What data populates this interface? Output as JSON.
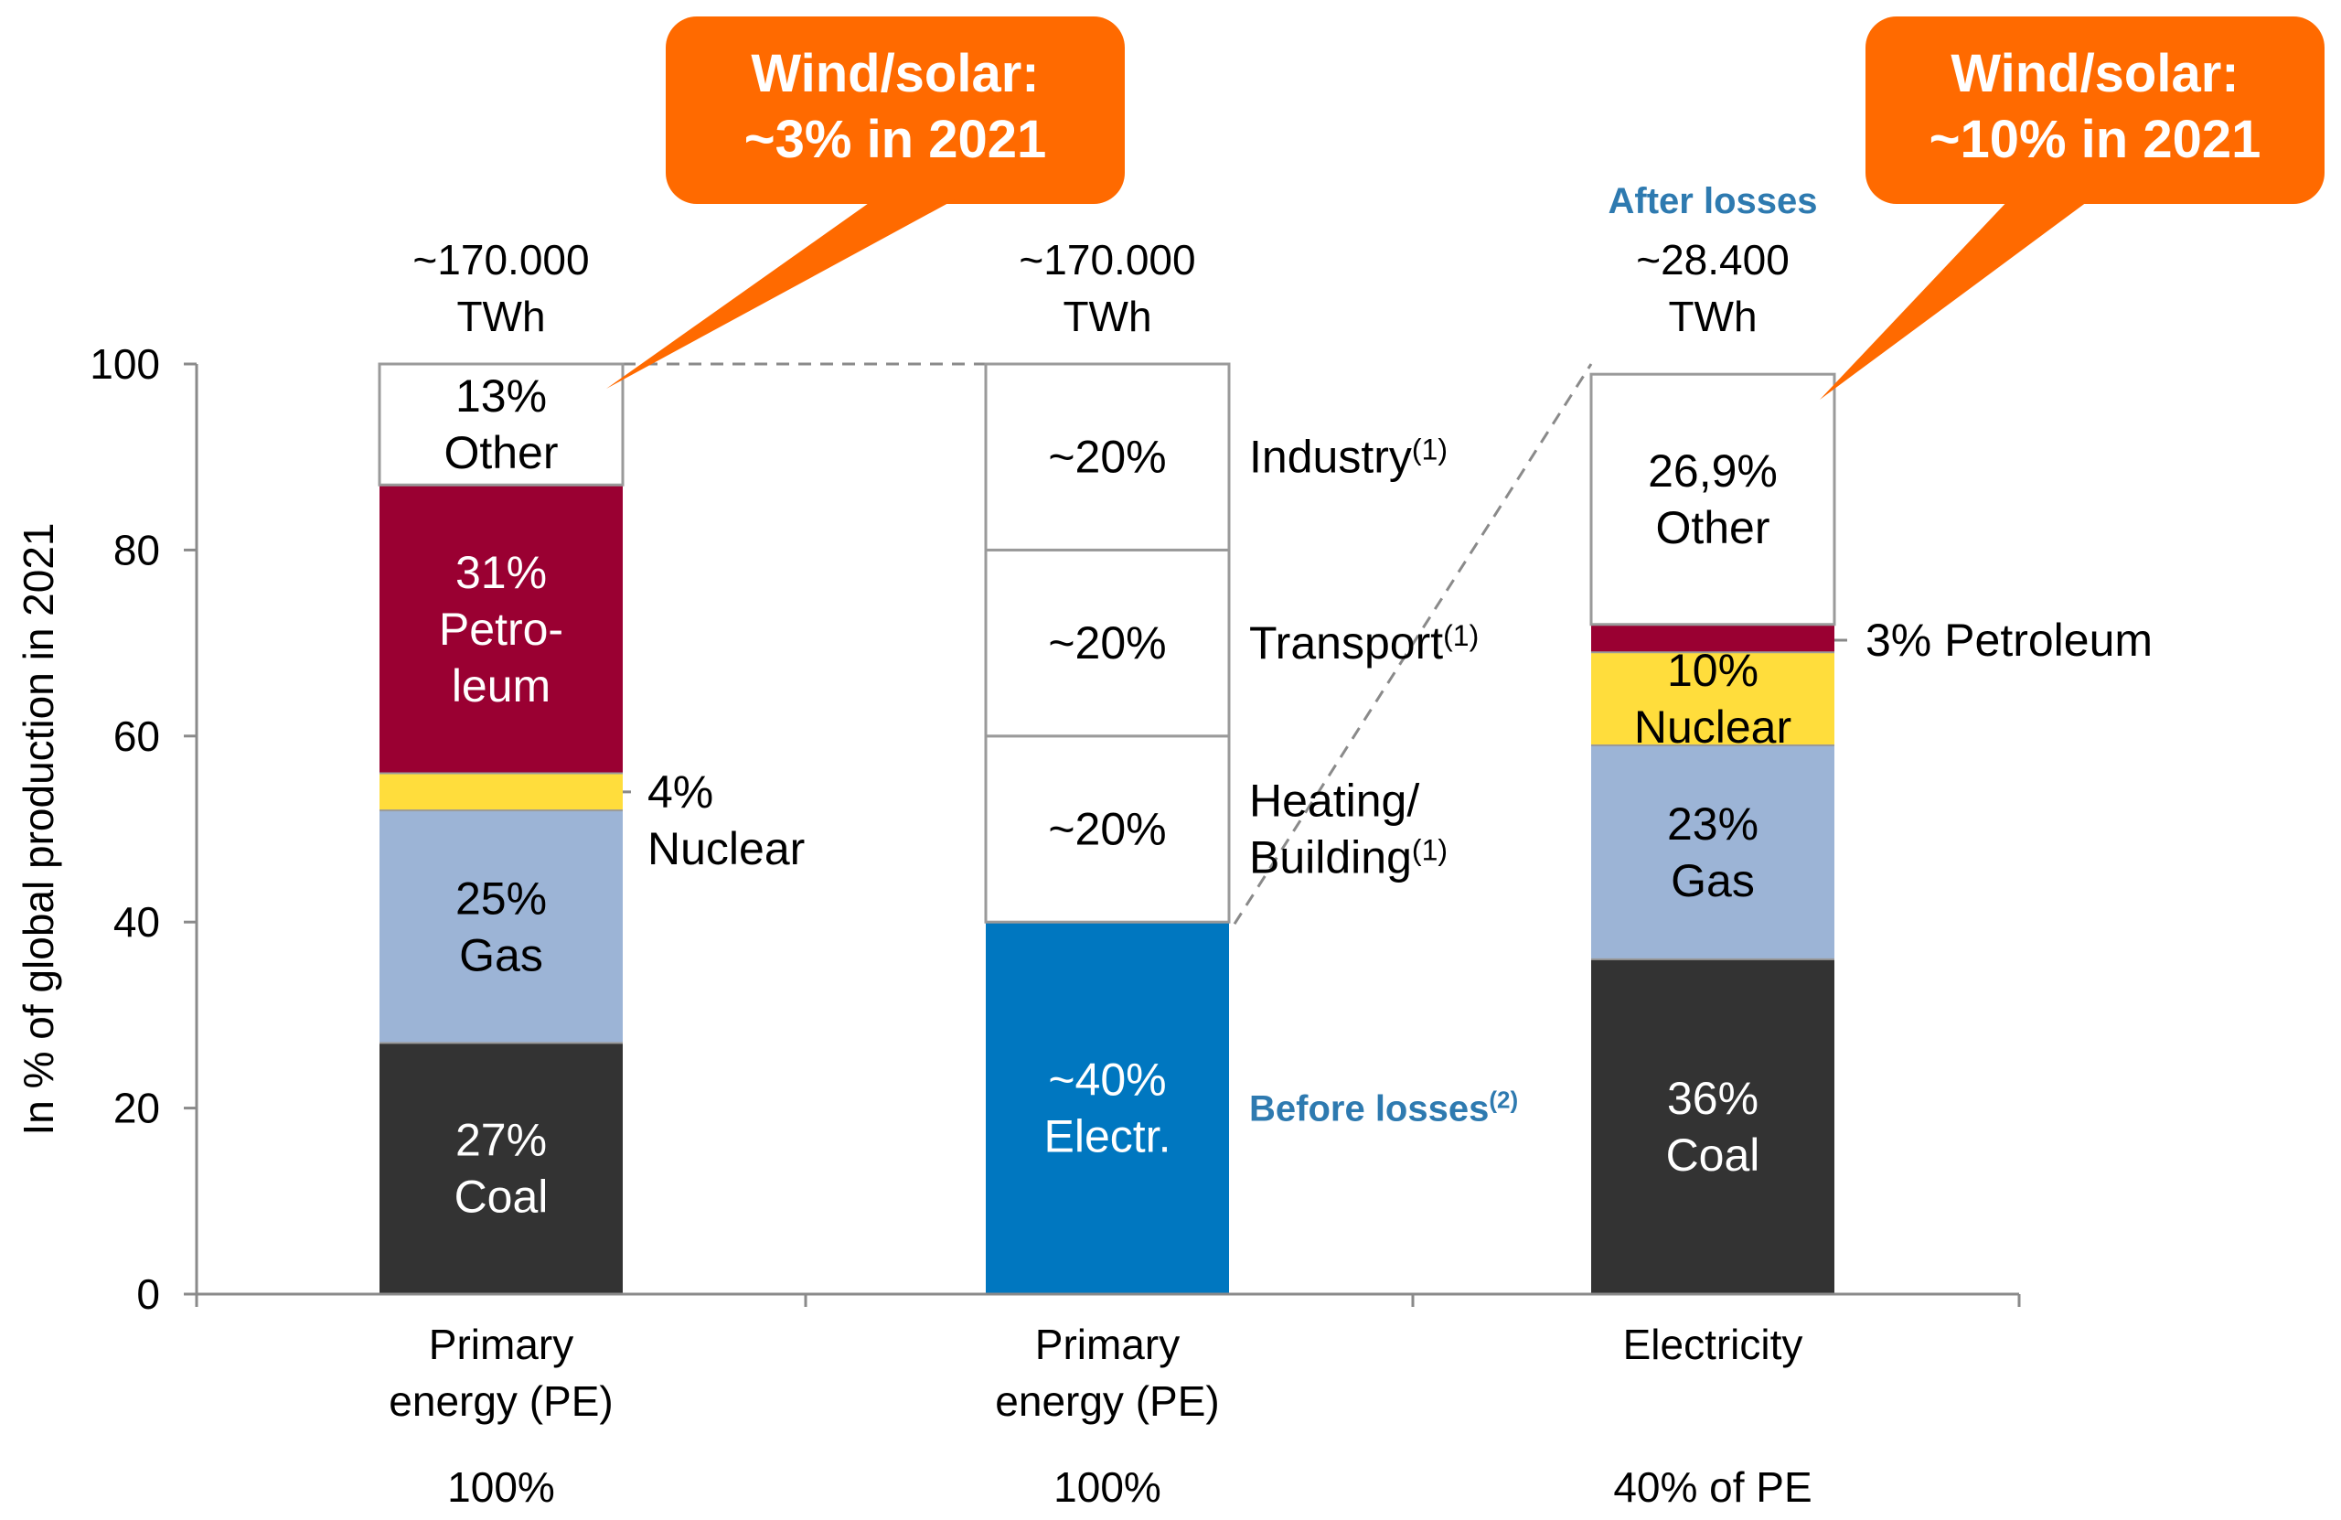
{
  "chart_data": {
    "type": "bar",
    "stacked": true,
    "ylabel": "In % of global production in 2021",
    "ylim": [
      0,
      100
    ],
    "yticks": [
      "0",
      "20",
      "40",
      "60",
      "80",
      "100"
    ],
    "categories": [
      {
        "label": [
          "Primary",
          "energy (PE)"
        ],
        "share": "100%",
        "total": [
          "~170.000",
          "TWh"
        ]
      },
      {
        "label": [
          "Primary",
          "energy (PE)"
        ],
        "share": "100%",
        "total": [
          "~170.000",
          "TWh"
        ]
      },
      {
        "label": [
          "Electricity"
        ],
        "share": "40% of PE",
        "total": [
          "~28.400",
          "TWh"
        ],
        "total_note": "After losses"
      }
    ],
    "bars": [
      [
        {
          "name": "Coal",
          "value": 27,
          "color": "#333333",
          "text_color": "#ffffff",
          "label": [
            "27%",
            "Coal"
          ]
        },
        {
          "name": "Gas",
          "value": 25,
          "color": "#9cb4d6",
          "text_color": "#000000",
          "label": [
            "25%",
            "Gas"
          ]
        },
        {
          "name": "Nuclear",
          "value": 4,
          "color": "#ffdd3c",
          "text_color": "#000000",
          "label": [],
          "side_label": [
            "4%",
            "Nuclear"
          ]
        },
        {
          "name": "Petroleum",
          "value": 31,
          "color": "#9a0032",
          "text_color": "#ffffff",
          "label": [
            "31%",
            "Petro-",
            "leum"
          ]
        },
        {
          "name": "Other",
          "value": 13,
          "color": "#ffffff",
          "text_color": "#000000",
          "label": [
            "13%",
            "Other"
          ]
        }
      ],
      [
        {
          "name": "Electr.",
          "value": 40,
          "color": "#0077c0",
          "text_color": "#ffffff",
          "label": [
            "~40%",
            "Electr."
          ],
          "side_label": [
            "Before losses",
            "(2)"
          ]
        },
        {
          "name": "Heating/Building",
          "value": 20,
          "color": "#ffffff",
          "text_color": "#000000",
          "label": [
            "~20%"
          ],
          "side_label": [
            "Heating/",
            "Building",
            "(1)"
          ]
        },
        {
          "name": "Transport",
          "value": 20,
          "color": "#ffffff",
          "text_color": "#000000",
          "label": [
            "~20%"
          ],
          "side_label": [
            "Transport",
            "(1)"
          ]
        },
        {
          "name": "Industry",
          "value": 20,
          "color": "#ffffff",
          "text_color": "#000000",
          "label": [
            "~20%"
          ],
          "side_label": [
            "Industry",
            "(1)"
          ]
        }
      ],
      [
        {
          "name": "Coal",
          "value": 36,
          "color": "#333333",
          "text_color": "#ffffff",
          "label": [
            "36%",
            "Coal"
          ]
        },
        {
          "name": "Gas",
          "value": 23,
          "color": "#9cb4d6",
          "text_color": "#000000",
          "label": [
            "23%",
            "Gas"
          ]
        },
        {
          "name": "Nuclear",
          "value": 10,
          "color": "#ffdd3c",
          "text_color": "#000000",
          "label": [
            "10%",
            "Nuclear"
          ]
        },
        {
          "name": "Petroleum",
          "value": 3,
          "color": "#9a0032",
          "text_color": "#ffffff",
          "label": [],
          "side_label": [
            "3% Petroleum"
          ]
        },
        {
          "name": "Other",
          "value": 26.9,
          "color": "#ffffff",
          "text_color": "#000000",
          "label": [
            "26,9%",
            "Other"
          ]
        }
      ]
    ],
    "callouts": [
      {
        "bar": 0,
        "lines": [
          "Wind/solar:",
          "~3% in 2021"
        ],
        "color": "#ff6a00"
      },
      {
        "bar": 2,
        "lines": [
          "Wind/solar:",
          "~10% in 2021"
        ],
        "color": "#ff6a00"
      }
    ],
    "grid": false,
    "legend": "none"
  }
}
